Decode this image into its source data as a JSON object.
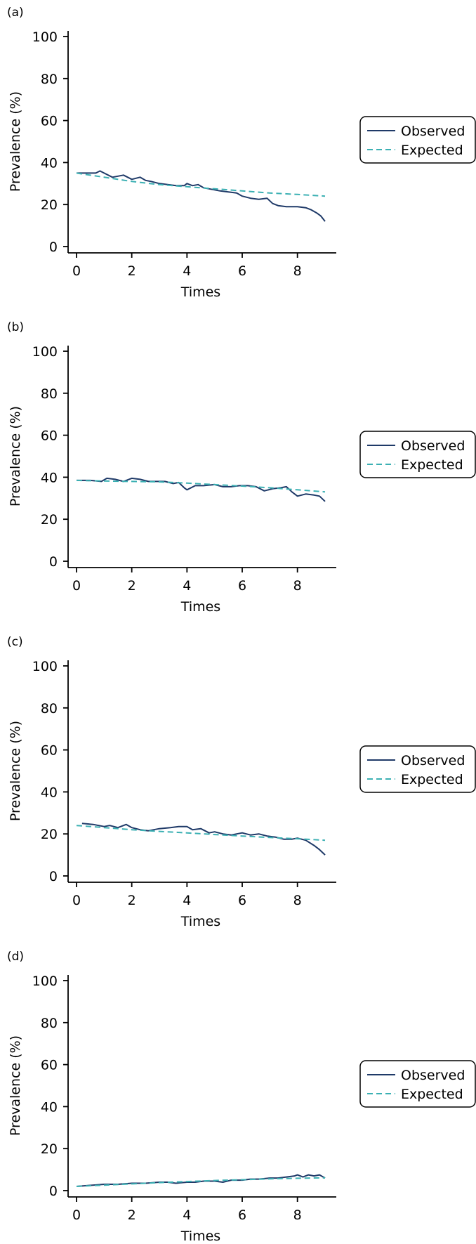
{
  "chart_data": [
    {
      "type": "line",
      "panel_label": "(a)",
      "xlabel": "Times",
      "ylabel": "Prevalence (%)",
      "xlim": [
        0,
        9
      ],
      "ylim": [
        0,
        100
      ],
      "xticks": [
        0,
        2,
        4,
        6,
        8
      ],
      "yticks": [
        0,
        20,
        40,
        60,
        80,
        100
      ],
      "grid": false,
      "legend_position": "right",
      "series": [
        {
          "name": "Observed",
          "color": "#1f3a68",
          "style": "solid",
          "x": [
            0,
            0.4,
            0.7,
            0.85,
            1.0,
            1.3,
            1.7,
            2.0,
            2.3,
            2.5,
            2.7,
            3.0,
            3.3,
            3.6,
            3.9,
            4.0,
            4.2,
            4.4,
            4.6,
            4.8,
            5.0,
            5.2,
            5.5,
            5.8,
            6.0,
            6.3,
            6.6,
            6.9,
            7.1,
            7.3,
            7.6,
            8.0,
            8.3,
            8.5,
            8.7,
            8.85,
            9.0
          ],
          "y": [
            35,
            35,
            35,
            36,
            35,
            33,
            34,
            32,
            33,
            31.5,
            31,
            30,
            29.5,
            29,
            29,
            30,
            29,
            29.5,
            28,
            27.5,
            27,
            26.5,
            26,
            25.5,
            24,
            23,
            22.5,
            23,
            20.5,
            19.5,
            19,
            19,
            18.5,
            17.5,
            16,
            14.5,
            12
          ]
        },
        {
          "name": "Expected",
          "color": "#3bb0b3",
          "style": "dashed",
          "x": [
            0,
            1,
            2,
            3,
            4,
            5,
            6,
            7,
            8,
            9
          ],
          "y": [
            35,
            33,
            31,
            29.5,
            28.5,
            27.5,
            26.5,
            25.5,
            24.8,
            24
          ]
        }
      ]
    },
    {
      "type": "line",
      "panel_label": "(b)",
      "xlabel": "Times",
      "ylabel": "Prevalence (%)",
      "xlim": [
        0,
        9
      ],
      "ylim": [
        0,
        100
      ],
      "xticks": [
        0,
        2,
        4,
        6,
        8
      ],
      "yticks": [
        0,
        20,
        40,
        60,
        80,
        100
      ],
      "grid": false,
      "legend_position": "right",
      "series": [
        {
          "name": "Observed",
          "color": "#1f3a68",
          "style": "solid",
          "x": [
            0,
            0.5,
            0.9,
            1.1,
            1.4,
            1.7,
            2.0,
            2.3,
            2.6,
            2.9,
            3.2,
            3.5,
            3.7,
            3.9,
            4.0,
            4.3,
            4.6,
            5.0,
            5.3,
            5.6,
            5.9,
            6.2,
            6.5,
            6.8,
            7.1,
            7.4,
            7.6,
            7.8,
            8.0,
            8.3,
            8.6,
            8.8,
            9.0
          ],
          "y": [
            38.5,
            38.5,
            38,
            39.5,
            39,
            38,
            39.5,
            39,
            38,
            38,
            38,
            37,
            37.5,
            35,
            34,
            36,
            36,
            36.5,
            35.5,
            35.5,
            36,
            36,
            35.5,
            33.5,
            34.5,
            35,
            35.5,
            33,
            31,
            32,
            31.5,
            31,
            28.5
          ]
        },
        {
          "name": "Expected",
          "color": "#3bb0b3",
          "style": "dashed",
          "x": [
            0,
            1,
            2,
            3,
            4,
            5,
            6,
            7,
            8,
            9
          ],
          "y": [
            38.5,
            38.2,
            38,
            37.8,
            37.2,
            36.5,
            35.8,
            35,
            34,
            33
          ]
        }
      ]
    },
    {
      "type": "line",
      "panel_label": "(c)",
      "xlabel": "Times",
      "ylabel": "Prevalence (%)",
      "xlim": [
        0,
        9
      ],
      "ylim": [
        0,
        100
      ],
      "xticks": [
        0,
        2,
        4,
        6,
        8
      ],
      "yticks": [
        0,
        20,
        40,
        60,
        80,
        100
      ],
      "grid": false,
      "legend_position": "right",
      "series": [
        {
          "name": "Observed",
          "color": "#1f3a68",
          "style": "solid",
          "x": [
            0.2,
            0.6,
            1.0,
            1.2,
            1.5,
            1.8,
            2.0,
            2.3,
            2.6,
            3.0,
            3.4,
            3.7,
            4.0,
            4.2,
            4.5,
            4.8,
            5.0,
            5.3,
            5.6,
            6.0,
            6.3,
            6.6,
            6.9,
            7.2,
            7.5,
            7.8,
            8.0,
            8.3,
            8.6,
            8.8,
            9.0
          ],
          "y": [
            25,
            24.5,
            23.5,
            24,
            23,
            24.5,
            23,
            22,
            21.5,
            22.5,
            23,
            23.5,
            23.5,
            22,
            22.5,
            20.5,
            21,
            20,
            19.5,
            20.5,
            19.5,
            20,
            19,
            18.5,
            17.5,
            17.5,
            18,
            17,
            14.5,
            12.5,
            10
          ]
        },
        {
          "name": "Expected",
          "color": "#3bb0b3",
          "style": "dashed",
          "x": [
            0,
            1,
            2,
            3,
            4,
            5,
            6,
            7,
            8,
            9
          ],
          "y": [
            24,
            23,
            22,
            21.2,
            20.5,
            19.7,
            19,
            18.3,
            17.7,
            17
          ]
        }
      ]
    },
    {
      "type": "line",
      "panel_label": "(d)",
      "xlabel": "Times",
      "ylabel": "Prevalence (%)",
      "xlim": [
        0,
        9
      ],
      "ylim": [
        0,
        100
      ],
      "xticks": [
        0,
        2,
        4,
        6,
        8
      ],
      "yticks": [
        0,
        20,
        40,
        60,
        80,
        100
      ],
      "grid": false,
      "legend_position": "right",
      "series": [
        {
          "name": "Observed",
          "color": "#1f3a68",
          "style": "solid",
          "x": [
            0,
            0.5,
            1.0,
            1.5,
            2.0,
            2.5,
            3.0,
            3.3,
            3.6,
            4.0,
            4.3,
            4.6,
            5.0,
            5.3,
            5.6,
            6.0,
            6.3,
            6.6,
            7.0,
            7.3,
            7.6,
            7.9,
            8.0,
            8.2,
            8.4,
            8.6,
            8.8,
            9.0
          ],
          "y": [
            2,
            2.5,
            3,
            3,
            3.5,
            3.5,
            4,
            4,
            3.5,
            4,
            4,
            4.5,
            4.5,
            4,
            5,
            5,
            5.5,
            5.5,
            6,
            6,
            6.5,
            7,
            7.5,
            6.5,
            7.5,
            7,
            7.5,
            6
          ]
        },
        {
          "name": "Expected",
          "color": "#3bb0b3",
          "style": "dashed",
          "x": [
            0,
            1,
            2,
            3,
            4,
            5,
            6,
            7,
            8,
            9
          ],
          "y": [
            2,
            2.6,
            3.2,
            3.8,
            4.3,
            4.8,
            5.2,
            5.6,
            5.9,
            6.1
          ]
        }
      ]
    }
  ]
}
